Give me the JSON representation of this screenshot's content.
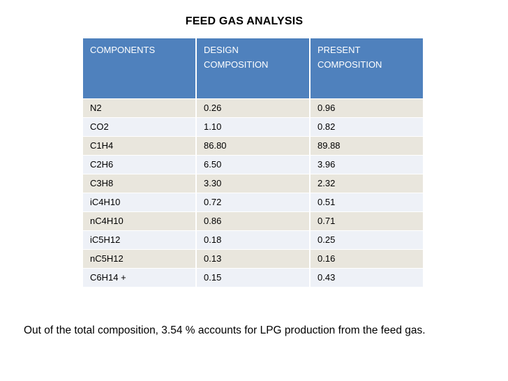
{
  "title": "FEED GAS ANALYSIS",
  "table": {
    "headers": [
      {
        "line1": "COMPONENTS",
        "line2": ""
      },
      {
        "line1": "DESIGN",
        "line2": "COMPOSITION"
      },
      {
        "line1": "PRESENT",
        "line2": "COMPOSITION"
      }
    ],
    "rows": [
      [
        "N2",
        "0.26",
        "0.96"
      ],
      [
        "CO2",
        "1.10",
        "0.82"
      ],
      [
        "C1H4",
        "86.80",
        "89.88"
      ],
      [
        "C2H6",
        "6.50",
        "3.96"
      ],
      [
        "C3H8",
        "3.30",
        "2.32"
      ],
      [
        "iC4H10",
        "0.72",
        "0.51"
      ],
      [
        "nC4H10",
        "0.86",
        "0.71"
      ],
      [
        "iC5H12",
        "0.18",
        "0.25"
      ],
      [
        "nC5H12",
        "0.13",
        "0.16"
      ],
      [
        "C6H14 +",
        "0.15",
        "0.43"
      ]
    ]
  },
  "footnote": "Out of the total composition, 3.54 % accounts for LPG production from the feed gas."
}
